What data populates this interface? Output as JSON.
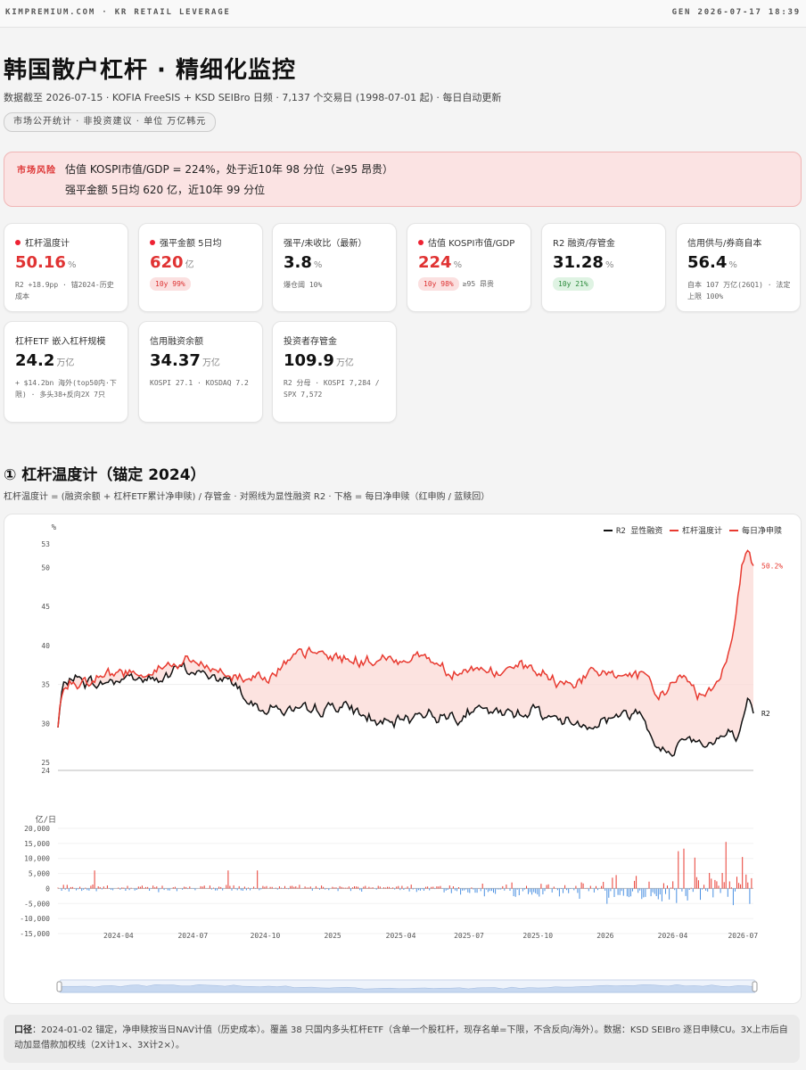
{
  "header": {
    "brand": "KIMPREMIUM.COM · KR RETAIL LEVERAGE",
    "gen": "GEN 2026-07-17 18:39"
  },
  "page": {
    "title": "韩国散户杠杆 · 精细化监控",
    "subtitle": "数据截至 2026-07-15 · KOFIA FreeSIS + KSD SEIBro 日频 · 7,137 个交易日 (1998-07-01 起) · 每日自动更新",
    "pill": "市场公开统计 · 非投资建议 · 单位 万亿韩元"
  },
  "risk": {
    "label": "市场风险",
    "line1": "估值 KOSPI市值/GDP = 224%，处于近10年 98 分位（≥95 昂贵）",
    "line2": "强平金额 5日均 620 亿，近10年 99 分位"
  },
  "cards": [
    {
      "title": "杠杆温度计",
      "value": "50.16",
      "unit": "%",
      "red": true,
      "dot": true,
      "note": "R2 +18.9pp · 锚2024-历史成本"
    },
    {
      "title": "强平金额 5日均",
      "value": "620",
      "unit": "亿",
      "red": true,
      "dot": true,
      "badge": "10y 99%",
      "badge_style": "pink"
    },
    {
      "title": "强平/未收比（最新）",
      "value": "3.8",
      "unit": "%",
      "note": "爆仓阈 10%"
    },
    {
      "title": "估值 KOSPI市值/GDP",
      "value": "224",
      "unit": "%",
      "red": true,
      "dot": true,
      "badge": "10y 98%",
      "badge_style": "pink",
      "note": "≥95 昂贵"
    },
    {
      "title": "R2 融资/存管金",
      "value": "31.28",
      "unit": "%",
      "badge": "10y 21%",
      "badge_style": "green"
    },
    {
      "title": "信用供与/券商自本",
      "value": "56.4",
      "unit": "%",
      "note": "自本 107 万亿(26Q1) · 法定上限 100%"
    },
    {
      "title": "杠杆ETF 嵌入杠杆规模",
      "value": "24.2",
      "unit": "万亿",
      "note": "+ $14.2bn 海外(top50内·下限) · 多头38+反向2X 7只"
    },
    {
      "title": "信用融资余额",
      "value": "34.37",
      "unit": "万亿",
      "note": "KOSPI 27.1 · KOSDAQ 7.2"
    },
    {
      "title": "投资者存管金",
      "value": "109.9",
      "unit": "万亿",
      "note": "R2 分母 · KOSPI 7,284 / SPX 7,572"
    }
  ],
  "section": {
    "title": "① 杠杆温度计（锚定 2024）",
    "subtitle": "杠杆温度计 = (融资余额 + 杠杆ETF累计净申赎) / 存管金 · 对照线为显性融资 R2 · 下格 = 每日净申赎（红申购 / 蓝赎回）"
  },
  "chart_data": {
    "type": "line",
    "top_panel": {
      "y_unit_label": "%",
      "ylim": [
        24,
        53
      ],
      "y_ticks": [
        24,
        25,
        30,
        35,
        40,
        45,
        50,
        53
      ],
      "legend_position": "top-right",
      "series": [
        {
          "name": "R2 显性融资",
          "color": "#111111",
          "end_label": "R2",
          "anchors": [
            [
              0,
              29.5
            ],
            [
              0.006,
              34
            ],
            [
              0.018,
              36
            ],
            [
              0.06,
              35
            ],
            [
              0.1,
              36
            ],
            [
              0.14,
              35.5
            ],
            [
              0.18,
              37
            ],
            [
              0.22,
              36
            ],
            [
              0.26,
              35
            ],
            [
              0.275,
              32.5
            ],
            [
              0.32,
              32
            ],
            [
              0.36,
              31
            ],
            [
              0.4,
              32.5
            ],
            [
              0.44,
              31
            ],
            [
              0.48,
              29.5
            ],
            [
              0.52,
              31.5
            ],
            [
              0.56,
              31
            ],
            [
              0.6,
              31.5
            ],
            [
              0.64,
              31
            ],
            [
              0.68,
              32
            ],
            [
              0.72,
              30.5
            ],
            [
              0.76,
              30
            ],
            [
              0.8,
              31
            ],
            [
              0.84,
              31.5
            ],
            [
              0.86,
              28
            ],
            [
              0.88,
              25.6
            ],
            [
              0.9,
              28.5
            ],
            [
              0.92,
              28
            ],
            [
              0.94,
              27.5
            ],
            [
              0.96,
              28.5
            ],
            [
              0.98,
              28
            ],
            [
              0.992,
              32
            ],
            [
              1,
              31.3
            ]
          ]
        },
        {
          "name": "杠杆温度计",
          "color": "#e83a30",
          "end_label": "50.2%",
          "anchors": [
            [
              0,
              29.5
            ],
            [
              0.006,
              34
            ],
            [
              0.018,
              35.5
            ],
            [
              0.06,
              36
            ],
            [
              0.1,
              36.5
            ],
            [
              0.14,
              37
            ],
            [
              0.18,
              38
            ],
            [
              0.22,
              37
            ],
            [
              0.26,
              36
            ],
            [
              0.275,
              36
            ],
            [
              0.32,
              37
            ],
            [
              0.36,
              39
            ],
            [
              0.4,
              38.5
            ],
            [
              0.44,
              38
            ],
            [
              0.48,
              38
            ],
            [
              0.52,
              39
            ],
            [
              0.56,
              37
            ],
            [
              0.6,
              37
            ],
            [
              0.64,
              36.5
            ],
            [
              0.68,
              37
            ],
            [
              0.72,
              35
            ],
            [
              0.76,
              36
            ],
            [
              0.8,
              36.5
            ],
            [
              0.84,
              36
            ],
            [
              0.86,
              33
            ],
            [
              0.88,
              35
            ],
            [
              0.9,
              36
            ],
            [
              0.92,
              34
            ],
            [
              0.93,
              33.5
            ],
            [
              0.95,
              36
            ],
            [
              0.96,
              38
            ],
            [
              0.975,
              44
            ],
            [
              0.985,
              51
            ],
            [
              0.992,
              52.5
            ],
            [
              1,
              50.2
            ]
          ]
        }
      ]
    },
    "bottom_panel": {
      "y_unit_label": "亿/日",
      "ylim": [
        -15000,
        20000
      ],
      "y_ticks": [
        -15000,
        -10000,
        -5000,
        0,
        5000,
        10000,
        15000,
        20000
      ],
      "series": [
        {
          "name": "每日净申赎",
          "positive_color": "#e83a30",
          "negative_color": "#4a90e2"
        }
      ]
    },
    "x_ticks": [
      "2024-04",
      "2024-07",
      "2024-10",
      "2025",
      "2025-04",
      "2025-07",
      "2025-10",
      "2026",
      "2026-04",
      "2026-07"
    ],
    "legend": [
      "R2 显性融资",
      "杠杆温度计",
      "每日净申赎"
    ]
  },
  "footnote": {
    "label": "口径",
    "text": "：2024-01-02 锚定，净申赎按当日NAV计值（历史成本）。覆盖 38 只国内多头杠杆ETF（含单一个股杠杆，现存名单=下限，不含反向/海外）。数据：KSD SEIBro 逐日申赎CU。3X上市后自动加显借款加权线（2X计1×、3X计2×）。"
  }
}
